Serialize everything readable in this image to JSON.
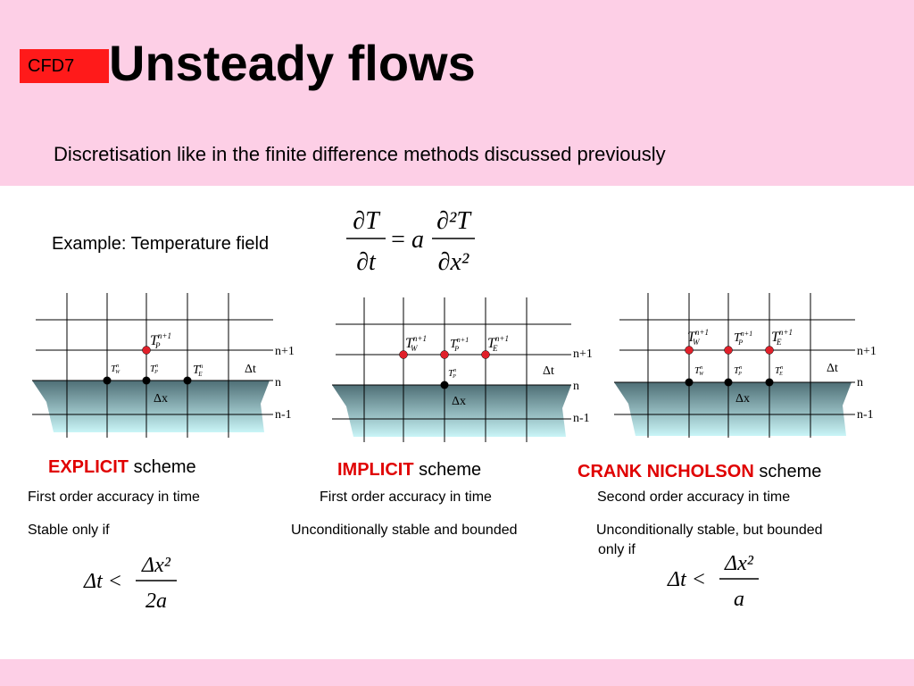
{
  "header": {
    "badge": "CFD7",
    "title": "Unsteady flows",
    "subtitle": "Discretisation like in the finite difference methods discussed previously"
  },
  "example": {
    "label": "Example: Temperature field",
    "pde": {
      "lhs_num": "∂T",
      "lhs_den": "∂t",
      "equals": "=",
      "coef": "a",
      "rhs_num": "∂²T",
      "rhs_den": "∂x²"
    }
  },
  "diagram_labels": {
    "row_top": "n+1",
    "row_mid": "n",
    "row_bot": "n-1",
    "dt": "Δt",
    "dx": "Δx"
  },
  "schemes": [
    {
      "highlight": "EXPLICIT",
      "word": "scheme",
      "accuracy": "First order accuracy in time",
      "stability": "Stable only if",
      "condition": {
        "lhs": "Δt <",
        "num": "Δx²",
        "den": "2a"
      }
    },
    {
      "highlight": "IMPLICIT",
      "word": "scheme",
      "accuracy": "First order accuracy in time",
      "stability": "Unconditionally stable and bounded"
    },
    {
      "highlight": "CRANK NICHOLSON",
      "word": "scheme",
      "accuracy": "Second order accuracy in time",
      "stability": "Unconditionally stable, but bounded",
      "stability2": "only if",
      "condition": {
        "lhs": "Δt <",
        "num": "Δx²",
        "den": "a"
      }
    }
  ],
  "colors": {
    "header_bg": "#fdcfe6",
    "badge": "#ff1a1a",
    "highlight": "#e00000",
    "node_red": "#e0202a",
    "node_black": "#000000",
    "ground_top": "#4f6f76",
    "ground_bottom": "#c9f5f7"
  }
}
